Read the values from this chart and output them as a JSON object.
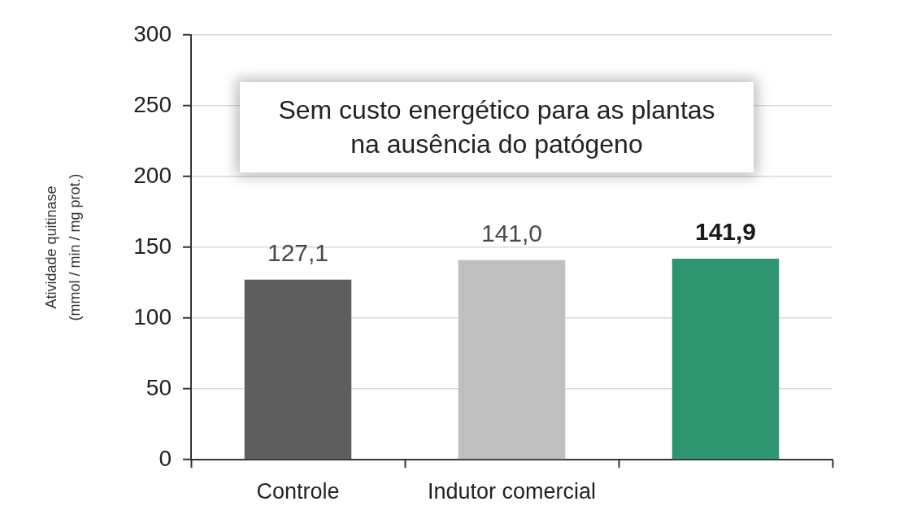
{
  "chart_data": {
    "type": "bar",
    "ylabel": "Atividade quitinase\n(mmol / min / mg prot.)",
    "annotations": [
      "Sem custo energético para as plantas na ausência do patógeno"
    ],
    "categories": [
      "Controle",
      "Indutor comercial",
      null
    ],
    "values": [
      127.1,
      141.0,
      141.9
    ],
    "colors": [
      "#5f5f5f",
      "#bfbfbf",
      "#2e9570"
    ],
    "value_labels": [
      "127,1",
      "141,0",
      "141,9"
    ],
    "ylim": [
      0,
      300
    ],
    "yticks": [
      0,
      50,
      100,
      150,
      200,
      250,
      300
    ],
    "grid": "y"
  }
}
